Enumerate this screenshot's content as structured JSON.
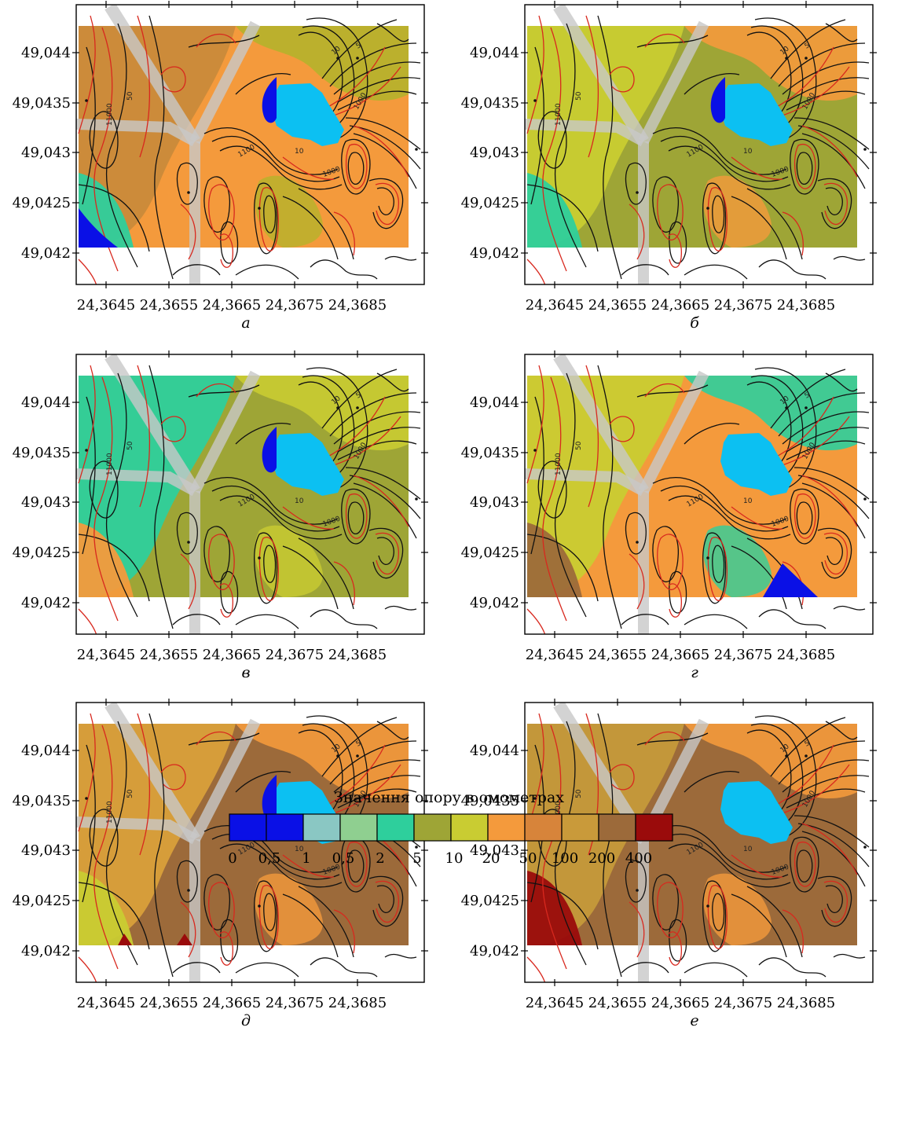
{
  "maps": [
    {
      "label": "а",
      "fills": [
        "#f49a3c",
        "#c98a3a",
        "#b5b32b",
        "#2ecf9c"
      ]
    },
    {
      "label": "б",
      "fills": [
        "#9ea536",
        "#c9cc32",
        "#f49a3c",
        "#2ecf9c"
      ]
    },
    {
      "label": "в",
      "fills": [
        "#9ea536",
        "#2ecf9c",
        "#c9cc32",
        "#f49a3c"
      ]
    },
    {
      "label": "г",
      "fills": [
        "#f49a3c",
        "#c9cc32",
        "#2ecf9c",
        "#9c6a3a"
      ]
    },
    {
      "label": "д",
      "fills": [
        "#9c6a3a",
        "#d9a03a",
        "#f49a3c",
        "#c9cc32"
      ]
    },
    {
      "label": "е",
      "fills": [
        "#9c6a3a",
        "#c59a3a",
        "#f49a3c",
        "#9a0b0b"
      ]
    }
  ],
  "y_ticks": [
    "49,044",
    "49,0435",
    "49,043",
    "49,0425",
    "49,042"
  ],
  "x_ticks": [
    "24,3645",
    "24,3655",
    "24,3665",
    "24,3675",
    "24,3685"
  ],
  "legend": {
    "title": "Значення опору в омометрах",
    "colors": [
      "#0a10e6",
      "#0a10e6",
      "#8ac7c3",
      "#8fcf90",
      "#2ecf9c",
      "#9ea536",
      "#c9cc32",
      "#f49a3c",
      "#d7843a",
      "#c99a3a",
      "#9c6a3a",
      "#9a0b0b"
    ],
    "labels": [
      "0",
      "0,5",
      "1",
      "0,5",
      "2",
      "5",
      "10",
      "20",
      "50",
      "100",
      "200",
      "400"
    ]
  },
  "colors": {
    "lake": "#0cc0f2",
    "road": "#c8c8c8",
    "contour_black": "#111111",
    "contour_red": "#d8281e"
  }
}
